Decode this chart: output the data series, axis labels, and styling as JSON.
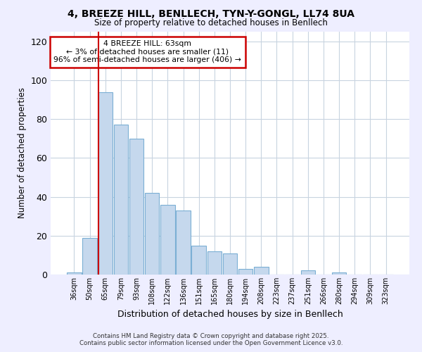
{
  "title": "4, BREEZE HILL, BENLLECH, TYN-Y-GONGL, LL74 8UA",
  "subtitle": "Size of property relative to detached houses in Benllech",
  "xlabel": "Distribution of detached houses by size in Benllech",
  "ylabel": "Number of detached properties",
  "bin_labels": [
    "36sqm",
    "50sqm",
    "65sqm",
    "79sqm",
    "93sqm",
    "108sqm",
    "122sqm",
    "136sqm",
    "151sqm",
    "165sqm",
    "180sqm",
    "194sqm",
    "208sqm",
    "223sqm",
    "237sqm",
    "251sqm",
    "266sqm",
    "280sqm",
    "294sqm",
    "309sqm",
    "323sqm"
  ],
  "bar_values": [
    1,
    19,
    94,
    77,
    70,
    42,
    36,
    33,
    15,
    12,
    11,
    3,
    4,
    0,
    0,
    2,
    0,
    1,
    0,
    0,
    0
  ],
  "bar_color": "#c5d8ed",
  "bar_edge_color": "#7bafd4",
  "marker_line_color": "#cc0000",
  "annotation_title": "4 BREEZE HILL: 63sqm",
  "annotation_line1": "← 3% of detached houses are smaller (11)",
  "annotation_line2": "96% of semi-detached houses are larger (406) →",
  "annotation_box_color": "#ffffff",
  "annotation_box_edge": "#cc0000",
  "ylim": [
    0,
    125
  ],
  "yticks": [
    0,
    20,
    40,
    60,
    80,
    100,
    120
  ],
  "footer1": "Contains HM Land Registry data © Crown copyright and database right 2025.",
  "footer2": "Contains public sector information licensed under the Open Government Licence v3.0.",
  "bg_color": "#eeeeff",
  "plot_bg_color": "#ffffff",
  "grid_color": "#c8d4e0"
}
